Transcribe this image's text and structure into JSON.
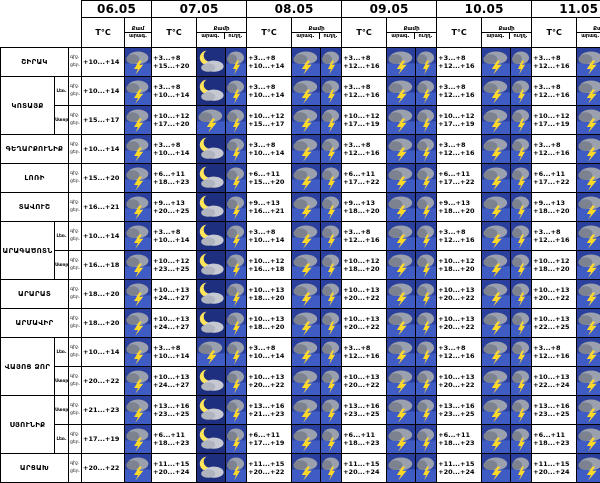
{
  "header": {
    "dates": [
      "06.05",
      "07.05",
      "08.05",
      "09.05",
      "10.05",
      "11.05"
    ],
    "temp_label": "T°C",
    "wind_label": "Քամի",
    "wind_label_short": "Քամ",
    "wind_speed_label": "արագ.",
    "wind_dir_label": "ուղղ."
  },
  "row_labels": {
    "night": "գիշ.",
    "day": "ցեր."
  },
  "sub_labels": {
    "lowland": "Ստոր.",
    "mountain": "Լեռ."
  },
  "icon_types": {
    "s": "storm-icon",
    "m": "moon-cloud-icon",
    "a": "arrow-icon"
  },
  "rows": [
    {
      "name": "ՇԻՐԱԿ",
      "span": 1,
      "subs": [
        ""
      ],
      "temps": [
        [
          "",
          "+10...+14"
        ],
        [
          "+3...+8",
          "+15...+20"
        ],
        [
          "+3...+8",
          "+10...+14"
        ],
        [
          "+3...+8",
          "+12...+16"
        ],
        [
          "+3...+8",
          "+12...+16"
        ],
        [
          "+3...+8",
          "+12...+16"
        ]
      ],
      "icons": [
        "sa",
        "msa",
        "sa",
        "sa",
        "sa",
        "sa"
      ]
    },
    {
      "name": "ԿՈՏԱՅՔ",
      "span": 2,
      "subs": [
        "Լեռ.",
        "Ստոր."
      ],
      "temps": [
        [
          "",
          "+10...+14"
        ],
        [
          "+3...+8",
          "+10...+14"
        ],
        [
          "+3...+8",
          "+10...+14"
        ],
        [
          "+3...+8",
          "+12...+16"
        ],
        [
          "+3...+8",
          "+12...+16"
        ],
        [
          "+3...+8",
          "+12...+16"
        ]
      ],
      "icons": [
        "sa",
        "msa",
        "sa",
        "sa",
        "sa",
        "sa"
      ]
    },
    {
      "name": "",
      "span": 0,
      "subs": [
        ""
      ],
      "temps": [
        [
          "",
          "+15...+17"
        ],
        [
          "+10...+12",
          "+17...+20"
        ],
        [
          "+10...+12",
          "+15...+17"
        ],
        [
          "+10...+12",
          "+17...+19"
        ],
        [
          "+10...+12",
          "+17...+19"
        ],
        [
          "+10...+12",
          "+17...+19"
        ]
      ],
      "icons": [
        "sa",
        "sa",
        "sa",
        "sa",
        "sa",
        "sa"
      ]
    },
    {
      "name": "ԳԵՂԱՐՔՈՒՆԻՔ",
      "span": 1,
      "subs": [
        ""
      ],
      "temps": [
        [
          "",
          "+10...+14"
        ],
        [
          "+3...+8",
          "+10...+14"
        ],
        [
          "+3...+8",
          "+10...+14"
        ],
        [
          "+3...+8",
          "+12...+16"
        ],
        [
          "+3...+8",
          "+12...+16"
        ],
        [
          "+3...+8",
          "+12...+16"
        ]
      ],
      "icons": [
        "sa",
        "msa",
        "sa",
        "sa",
        "sa",
        "sa"
      ]
    },
    {
      "name": "ԼՈՌԻ",
      "span": 1,
      "subs": [
        ""
      ],
      "temps": [
        [
          "",
          "+15...+20"
        ],
        [
          "+6...+11",
          "+18...+23"
        ],
        [
          "+6...+11",
          "+15...+20"
        ],
        [
          "+6...+11",
          "+17...+22"
        ],
        [
          "+6...+11",
          "+17...+22"
        ],
        [
          "+6...+11",
          "+17...+22"
        ]
      ],
      "icons": [
        "sa",
        "msa",
        "sa",
        "sa",
        "sa",
        "sa"
      ]
    },
    {
      "name": "ՏԱՎՈՒՇ",
      "span": 1,
      "subs": [
        ""
      ],
      "temps": [
        [
          "",
          "+16...+21"
        ],
        [
          "+9...+13",
          "+20...+25"
        ],
        [
          "+9...+13",
          "+16...+21"
        ],
        [
          "+9...+13",
          "+18...+20"
        ],
        [
          "+9...+13",
          "+18...+20"
        ],
        [
          "+9...+13",
          "+18...+20"
        ]
      ],
      "icons": [
        "sa",
        "msa",
        "sa",
        "sa",
        "sa",
        "sa"
      ]
    },
    {
      "name": "ԱՐԱԳԱԾՈՏՆ",
      "span": 2,
      "subs": [
        "Լեռ.",
        "Ստոր."
      ],
      "temps": [
        [
          "",
          "+10...+14"
        ],
        [
          "+3...+8",
          "+10...+14"
        ],
        [
          "+3...+8",
          "+10...+14"
        ],
        [
          "+3...+8",
          "+12...+16"
        ],
        [
          "+3...+8",
          "+12...+16"
        ],
        [
          "+3...+8",
          "+12...+16"
        ]
      ],
      "icons": [
        "sa",
        "msa",
        "sa",
        "sa",
        "sa",
        "sa"
      ]
    },
    {
      "name": "",
      "span": 0,
      "subs": [
        ""
      ],
      "temps": [
        [
          "",
          "+16...+18"
        ],
        [
          "+10...+12",
          "+23...+25"
        ],
        [
          "+10...+12",
          "+16...+18"
        ],
        [
          "+10...+12",
          "+18...+20"
        ],
        [
          "+10...+12",
          "+18...+20"
        ],
        [
          "+10...+12",
          "+18...+20"
        ]
      ],
      "icons": [
        "sa",
        "msa",
        "sa",
        "sa",
        "sa",
        "sa"
      ]
    },
    {
      "name": "ԱՐԱՐԱՏ",
      "span": 1,
      "subs": [
        ""
      ],
      "temps": [
        [
          "",
          "+18...+20"
        ],
        [
          "+10...+13",
          "+24...+27"
        ],
        [
          "+10...+13",
          "+18...+20"
        ],
        [
          "+10...+13",
          "+20...+22"
        ],
        [
          "+10...+13",
          "+20...+22"
        ],
        [
          "+10...+13",
          "+20...+22"
        ]
      ],
      "icons": [
        "sa",
        "msa",
        "sa",
        "sa",
        "sa",
        "sa"
      ]
    },
    {
      "name": "ԱՐՄԱՎԻՐ",
      "span": 1,
      "subs": [
        ""
      ],
      "temps": [
        [
          "",
          "+18...+20"
        ],
        [
          "+10...+13",
          "+24...+27"
        ],
        [
          "+10...+13",
          "+18...+20"
        ],
        [
          "+10...+13",
          "+20...+22"
        ],
        [
          "+10...+13",
          "+20...+22"
        ],
        [
          "+10...+13",
          "+22...+25"
        ]
      ],
      "icons": [
        "sa",
        "msa",
        "sa",
        "sa",
        "sa",
        "sa"
      ]
    },
    {
      "name": "ՎԱՅՈՑ ՁՈՐ",
      "span": 2,
      "subs": [
        "Լեռ.",
        "Ստոր."
      ],
      "temps": [
        [
          "",
          "+10...+14"
        ],
        [
          "+3...+8",
          "+10...+14"
        ],
        [
          "+3...+8",
          "+10...+14"
        ],
        [
          "+3...+8",
          "+12...+16"
        ],
        [
          "+3...+8",
          "+12...+16"
        ],
        [
          "+3...+8",
          "+12...+16"
        ]
      ],
      "icons": [
        "sa",
        "sa",
        "sa",
        "sa",
        "sa",
        "sa"
      ]
    },
    {
      "name": "",
      "span": 0,
      "subs": [
        ""
      ],
      "temps": [
        [
          "",
          "+20...+22"
        ],
        [
          "+10...+13",
          "+24...+27"
        ],
        [
          "+10...+13",
          "+20...+22"
        ],
        [
          "+10...+13",
          "+20...+22"
        ],
        [
          "+10...+13",
          "+20...+22"
        ],
        [
          "+10...+13",
          "+22...+24"
        ]
      ],
      "icons": [
        "sa",
        "msa",
        "sa",
        "sa",
        "sa",
        "sa"
      ]
    },
    {
      "name": "ՍՅՈՒՆԻՔ",
      "span": 2,
      "subs": [
        "Ստոր.",
        "Լեռ."
      ],
      "temps": [
        [
          "",
          "+21...+23"
        ],
        [
          "+13...+16",
          "+23...+25"
        ],
        [
          "+13...+16",
          "+21...+23"
        ],
        [
          "+13...+16",
          "+23...+25"
        ],
        [
          "+13...+16",
          "+23...+25"
        ],
        [
          "+13...+16",
          "+23...+25"
        ]
      ],
      "icons": [
        "sa",
        "msa",
        "sa",
        "sa",
        "sa",
        "sa"
      ]
    },
    {
      "name": "",
      "span": 0,
      "subs": [
        ""
      ],
      "temps": [
        [
          "",
          "+17...+19"
        ],
        [
          "+6...+11",
          "+18...+23"
        ],
        [
          "+6...+11",
          "+17...+19"
        ],
        [
          "+6...+11",
          "+18...+23"
        ],
        [
          "+6...+11",
          "+18...+23"
        ],
        [
          "+6...+11",
          "+18...+23"
        ]
      ],
      "icons": [
        "sa",
        "msa",
        "sa",
        "sa",
        "sa",
        "sa"
      ]
    },
    {
      "name": "ԱՐՑԱԽ",
      "span": 1,
      "subs": [
        ""
      ],
      "temps": [
        [
          "",
          "+20...+22"
        ],
        [
          "+11...+15",
          "+20...+24"
        ],
        [
          "+11...+15",
          "+20...+22"
        ],
        [
          "+11...+15",
          "+20...+24"
        ],
        [
          "+11...+15",
          "+20...+24"
        ],
        [
          "+11...+15",
          "+20...+24"
        ]
      ],
      "icons": [
        "sa",
        "msa",
        "sa",
        "sa",
        "sa",
        "sa"
      ]
    }
  ]
}
